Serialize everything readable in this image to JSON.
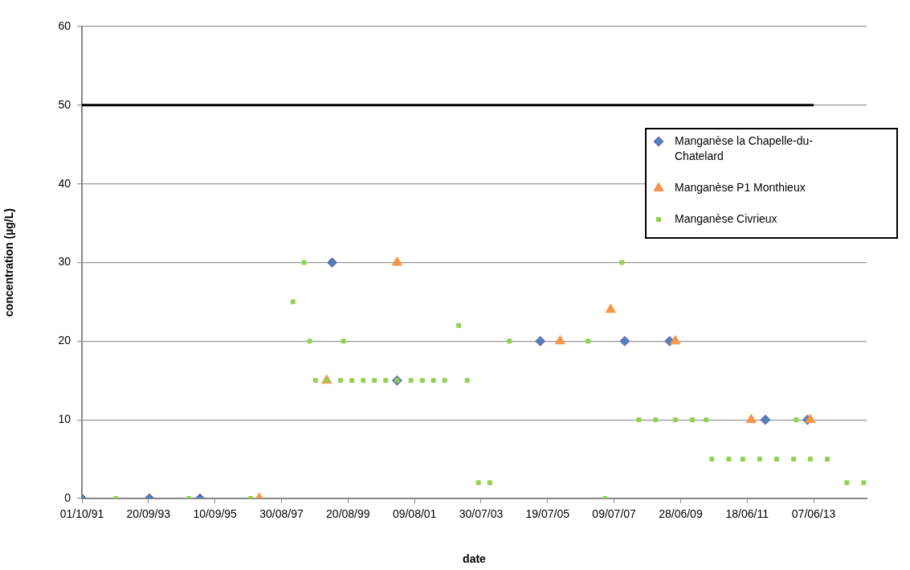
{
  "chart_data": {
    "type": "scatter",
    "xlabel": "date",
    "ylabel": "concentration (µg/L)",
    "xlim": [
      "1991-10-01",
      "2015-01-01"
    ],
    "ylim": [
      0,
      60
    ],
    "yticks": [
      0,
      10,
      20,
      30,
      40,
      50,
      60
    ],
    "xticks": [
      {
        "value": "1991-10-01",
        "label": "01/10/91"
      },
      {
        "value": "1993-09-20",
        "label": "20/09/93"
      },
      {
        "value": "1995-09-10",
        "label": "10/09/95"
      },
      {
        "value": "1997-08-30",
        "label": "30/08/97"
      },
      {
        "value": "1999-08-20",
        "label": "20/08/99"
      },
      {
        "value": "2001-08-09",
        "label": "09/08/01"
      },
      {
        "value": "2003-07-30",
        "label": "30/07/03"
      },
      {
        "value": "2005-07-19",
        "label": "19/07/05"
      },
      {
        "value": "2007-07-09",
        "label": "09/07/07"
      },
      {
        "value": "2009-06-28",
        "label": "28/06/09"
      },
      {
        "value": "2011-06-18",
        "label": "18/06/11"
      },
      {
        "value": "2013-06-07",
        "label": "07/06/13"
      }
    ],
    "grid": "y",
    "legend": "right",
    "series": [
      {
        "name": "Manganèse la Chapelle-du-Chatelard",
        "type": "scatter",
        "marker": "diamond",
        "color": "#4f81bd",
        "x": [
          "1991-10",
          "1993-10",
          "1995-04",
          "1999-03",
          "2001-02",
          "2005-05",
          "2007-11",
          "2009-03",
          "2012-01",
          "2013-04"
        ],
        "values": [
          0,
          0,
          0,
          30,
          15,
          20,
          20,
          20,
          10,
          10
        ]
      },
      {
        "name": "Manganèse P1 Monthieux",
        "type": "scatter",
        "marker": "triangle",
        "color": "#f79646",
        "x": [
          "1997-01",
          "1999-01",
          "2001-02",
          "2005-12",
          "2007-06",
          "2009-05",
          "2011-08",
          "2013-05"
        ],
        "values": [
          0,
          15,
          30,
          20,
          24,
          20,
          10,
          10
        ]
      },
      {
        "name": "Manganèse Civrieux",
        "type": "scatter",
        "marker": "square",
        "color": "#92d050",
        "x": [
          "1992-10",
          "1994-12",
          "1996-10",
          "1998-01",
          "1998-05",
          "1998-07",
          "1998-09",
          "1999-01",
          "1999-06",
          "1999-07",
          "1999-10",
          "2000-02",
          "2000-06",
          "2000-10",
          "2001-02",
          "2001-07",
          "2001-11",
          "2002-03",
          "2002-07",
          "2002-12",
          "2003-03",
          "2003-07",
          "2003-11",
          "2004-06",
          "2006-10",
          "2007-04",
          "2007-10",
          "2008-04",
          "2008-10",
          "2009-05",
          "2009-11",
          "2010-04",
          "2010-06",
          "2010-12",
          "2011-05",
          "2011-11",
          "2012-05",
          "2012-11",
          "2012-12",
          "2013-05",
          "2013-11",
          "2014-06",
          "2014-12"
        ],
        "values": [
          0,
          0,
          0,
          25,
          30,
          20,
          15,
          15,
          15,
          20,
          15,
          15,
          15,
          15,
          15,
          15,
          15,
          15,
          15,
          22,
          15,
          2,
          2,
          20,
          20,
          0,
          30,
          10,
          10,
          10,
          10,
          10,
          5,
          5,
          5,
          5,
          5,
          5,
          10,
          5,
          5,
          2,
          2
        ]
      },
      {
        "type": "line",
        "marker": "none",
        "line_style": "solid",
        "color": "#000000",
        "x": [
          "1991-10-01",
          "2013-06-07"
        ],
        "values": [
          50,
          50
        ]
      }
    ]
  }
}
